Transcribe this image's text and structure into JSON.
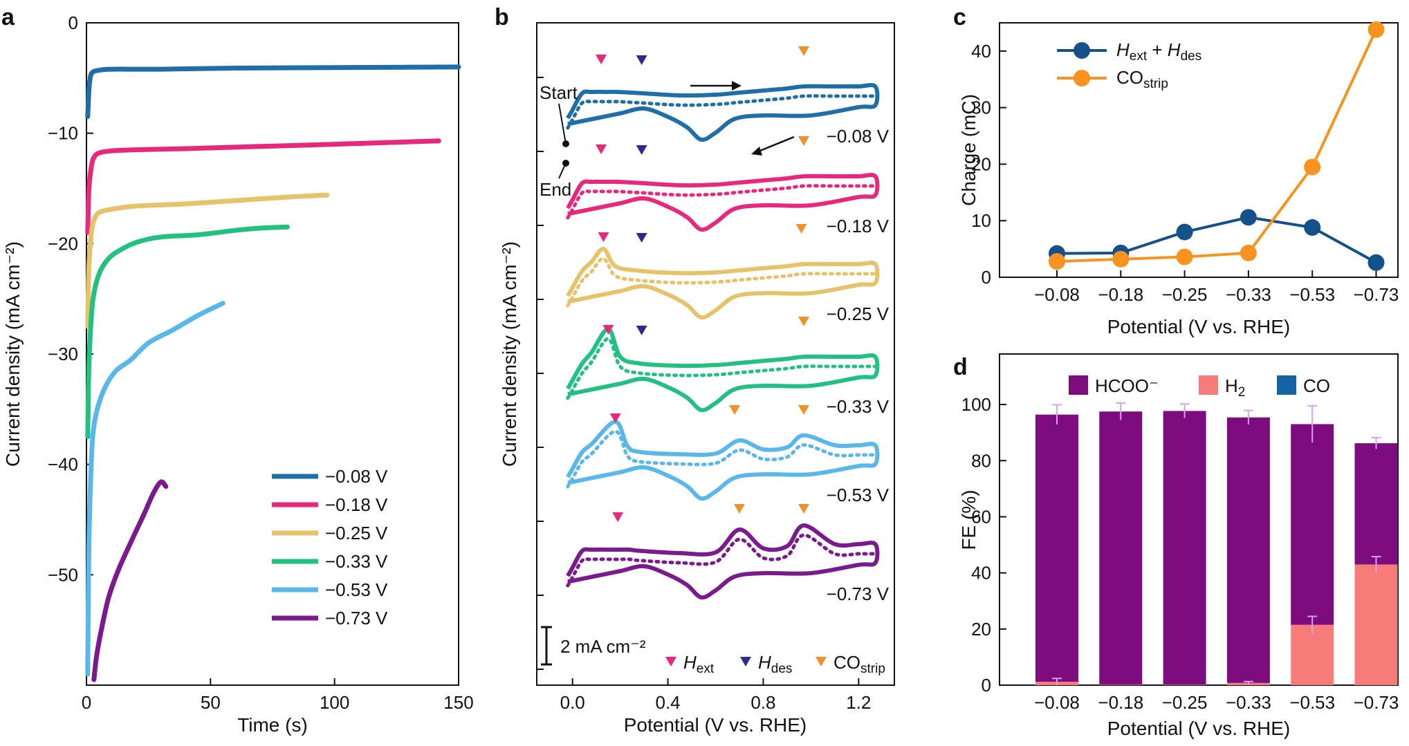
{
  "figure": {
    "colors": {
      "v008": "#1f6ea8",
      "v018": "#e8287a",
      "v025": "#e6c26a",
      "v033": "#22c181",
      "v053": "#5ab7ea",
      "v073": "#7a1a8c",
      "hext": "#e8287a",
      "hdes": "#2e2a8c",
      "costrip": "#f0922b",
      "c_series1": "#14508a",
      "c_series2": "#f7931e",
      "hcoo": "#7d0c7f",
      "h2": "#f77b7b",
      "co": "#1563a3",
      "err": "#d9a0f0"
    }
  },
  "chart_data": [
    {
      "panel": "a",
      "type": "line",
      "xlabel": "Time (s)",
      "ylabel": "Current density (mA cm⁻²)",
      "xlim": [
        0,
        150
      ],
      "ylim": [
        -60,
        0
      ],
      "xticks": [
        0,
        50,
        100,
        150
      ],
      "yticks": [
        0,
        -10,
        -20,
        -30,
        -40,
        -50
      ],
      "xtick_labels": [
        "0",
        "50",
        "100",
        "150"
      ],
      "ytick_labels": [
        "0",
        "−10",
        "−20",
        "−30",
        "−40",
        "−50"
      ],
      "legend": [
        "−0.08 V",
        "−0.18 V",
        "−0.25 V",
        "−0.33 V",
        "−0.53 V",
        "−0.73 V"
      ],
      "legend_position": "lower-right",
      "series": [
        {
          "name": "−0.08 V",
          "x": [
            0.5,
            1,
            1.5,
            2,
            3,
            5,
            10,
            30,
            60,
            100,
            150
          ],
          "y": [
            -8.5,
            -6,
            -5,
            -4.6,
            -4.4,
            -4.3,
            -4.2,
            -4.2,
            -4.1,
            -4.05,
            -4.0
          ]
        },
        {
          "name": "−0.18 V",
          "x": [
            0.5,
            1,
            2,
            3,
            5,
            10,
            20,
            40,
            70,
            100,
            142
          ],
          "y": [
            -19,
            -15,
            -13,
            -12.2,
            -11.8,
            -11.6,
            -11.5,
            -11.4,
            -11.2,
            -11.0,
            -10.7
          ]
        },
        {
          "name": "−0.25 V",
          "x": [
            0.5,
            1,
            2,
            3,
            5,
            10,
            20,
            40,
            60,
            80,
            97
          ],
          "y": [
            -27.5,
            -22,
            -19,
            -17.9,
            -17.2,
            -16.9,
            -16.6,
            -16.4,
            -16.1,
            -15.8,
            -15.6
          ]
        },
        {
          "name": "−0.33 V",
          "x": [
            0.5,
            1,
            2,
            3,
            5,
            8,
            12,
            20,
            30,
            45,
            60,
            70,
            81
          ],
          "y": [
            -37.5,
            -31,
            -26.5,
            -24.5,
            -22.8,
            -21.6,
            -20.8,
            -19.9,
            -19.4,
            -19.2,
            -18.8,
            -18.6,
            -18.5
          ]
        },
        {
          "name": "−0.53 V",
          "x": [
            0.5,
            1,
            2,
            3,
            5,
            8,
            12,
            18,
            25,
            35,
            45,
            55
          ],
          "y": [
            -59,
            -47,
            -39.5,
            -36.5,
            -34.5,
            -32.8,
            -31.5,
            -30.5,
            -29,
            -27.8,
            -26.5,
            -25.4
          ]
        },
        {
          "name": "−0.73 V",
          "x": [
            3,
            4,
            6,
            9,
            13,
            18,
            23,
            27,
            30,
            32
          ],
          "y": [
            -59.5,
            -57.5,
            -55,
            -52,
            -49.5,
            -47,
            -44.6,
            -42.6,
            -41.6,
            -42
          ]
        }
      ]
    },
    {
      "panel": "b",
      "type": "line",
      "xlabel": "Potential (V vs. RHE)",
      "ylabel": "Current density (mA cm⁻²)",
      "xlim": [
        -0.15,
        1.35
      ],
      "xticks": [
        0.0,
        0.4,
        0.8,
        1.2
      ],
      "xtick_labels": [
        "0.0",
        "0.4",
        "0.8",
        "1.2"
      ],
      "scale_bar": "2 mA cm⁻²",
      "annotations": [
        "Start",
        "End"
      ],
      "curve_labels": [
        "−0.08 V",
        "−0.18 V",
        "−0.25 V",
        "−0.33 V",
        "−0.53 V",
        "−0.73 V"
      ],
      "legend": [
        "H",
        "H",
        "CO"
      ],
      "legend_sub": [
        "ext",
        "des",
        "strip"
      ],
      "legend_position": "bottom-right",
      "markers": [
        {
          "curve": "−0.08 V",
          "hext": 0.12,
          "hdes": 0.29,
          "co": 0.97
        },
        {
          "curve": "−0.18 V",
          "hext": 0.12,
          "hdes": 0.29,
          "co": 0.97
        },
        {
          "curve": "−0.25 V",
          "hext": 0.13,
          "hdes": 0.29,
          "co": 0.96
        },
        {
          "curve": "−0.33 V",
          "hext": 0.15,
          "hdes": 0.29,
          "co": 0.97
        },
        {
          "curve": "−0.53 V",
          "hext": 0.18,
          "co": 0.68,
          "co2": 0.97
        },
        {
          "curve": "−0.73 V",
          "hext": 0.19,
          "co": 0.7,
          "co2": 0.97
        }
      ]
    },
    {
      "panel": "c",
      "type": "line",
      "xlabel": "Potential (V vs. RHE)",
      "ylabel": "Charge (mC)",
      "categories": [
        "−0.08",
        "−0.18",
        "−0.25",
        "−0.33",
        "−0.53",
        "−0.73"
      ],
      "ylim": [
        0,
        45
      ],
      "yticks": [
        0,
        10,
        20,
        30,
        40
      ],
      "legend_position": "top-left",
      "series": [
        {
          "name": "H",
          "name_sub1": "ext",
          "name_plus": " + ",
          "name2": "H",
          "name_sub2": "des",
          "values": [
            4.2,
            4.3,
            8.0,
            10.6,
            8.8,
            2.6
          ]
        },
        {
          "name": "CO",
          "name_sub1": "strip",
          "values": [
            2.8,
            3.2,
            3.6,
            4.3,
            19.5,
            43.8
          ]
        }
      ]
    },
    {
      "panel": "d",
      "type": "bar",
      "stacked": true,
      "xlabel": "Potential (V vs. RHE)",
      "ylabel": "FE (%)",
      "categories": [
        "−0.08",
        "−0.18",
        "−0.25",
        "−0.33",
        "−0.53",
        "−0.73"
      ],
      "ylim": [
        0,
        118
      ],
      "yticks": [
        0,
        20,
        40,
        60,
        80,
        100
      ],
      "legend": [
        "HCOO⁻",
        "H",
        "CO"
      ],
      "legend_sub": [
        "",
        "2",
        ""
      ],
      "legend_position": "top",
      "series": [
        {
          "name": "H₂",
          "values": [
            1.2,
            0.2,
            0.2,
            0.8,
            21.5,
            43.0
          ],
          "err": [
            1.2,
            0,
            0,
            0.5,
            3.0,
            2.8
          ]
        },
        {
          "name": "HCOO⁻",
          "values": [
            95.2,
            97.3,
            97.5,
            94.6,
            71.5,
            43.2
          ],
          "err": [
            3.5,
            3.0,
            2.5,
            2.5,
            6.5,
            2.0
          ]
        },
        {
          "name": "CO",
          "values": [
            0,
            0,
            0,
            0,
            0,
            0
          ]
        }
      ]
    }
  ],
  "panel_labels": [
    "a",
    "b",
    "c",
    "d"
  ]
}
